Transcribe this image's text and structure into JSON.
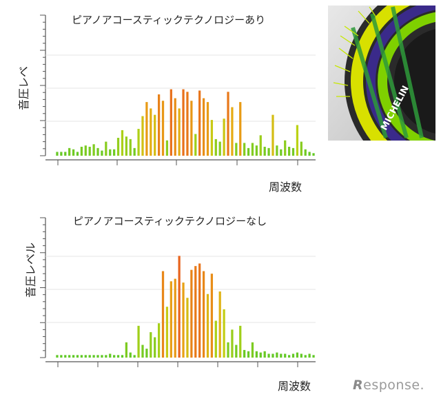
{
  "chart_data": [
    {
      "type": "bar",
      "title": "ピアノアコースティックテクノロジーあり",
      "ylabel": "音圧レベ",
      "xlabel": "周波数",
      "ylim": [
        0,
        110
      ],
      "values": [
        3,
        3,
        3,
        6,
        5,
        3,
        7,
        8,
        7,
        9,
        6,
        4,
        11,
        5,
        5,
        14,
        20,
        15,
        13,
        6,
        21,
        31,
        42,
        37,
        32,
        48,
        43,
        12,
        52,
        45,
        37,
        52,
        50,
        43,
        17,
        51,
        45,
        42,
        28,
        13,
        11,
        29,
        50,
        38,
        10,
        42,
        10,
        6,
        10,
        8,
        16,
        7,
        6,
        32,
        8,
        5,
        12,
        7,
        6,
        24,
        11,
        5,
        3,
        2
      ]
    },
    {
      "type": "bar",
      "title": "ピアノアコースティックテクノロジーなし",
      "ylabel": "音圧レベル",
      "xlabel": "周波数",
      "ylim": [
        0,
        110
      ],
      "values": [
        2,
        2,
        2,
        2,
        2,
        2,
        2,
        2,
        2,
        2,
        2,
        2,
        2,
        3,
        2,
        2,
        2,
        12,
        4,
        2,
        25,
        10,
        7,
        20,
        16,
        27,
        68,
        40,
        60,
        62,
        80,
        59,
        47,
        69,
        72,
        74,
        68,
        50,
        66,
        29,
        52,
        38,
        12,
        22,
        10,
        25,
        6,
        5,
        12,
        5,
        4,
        5,
        3,
        3,
        4,
        3,
        3,
        2,
        3,
        4,
        3,
        2,
        3,
        2
      ]
    }
  ],
  "brand": {
    "mark": "R",
    "text": "esponse."
  }
}
